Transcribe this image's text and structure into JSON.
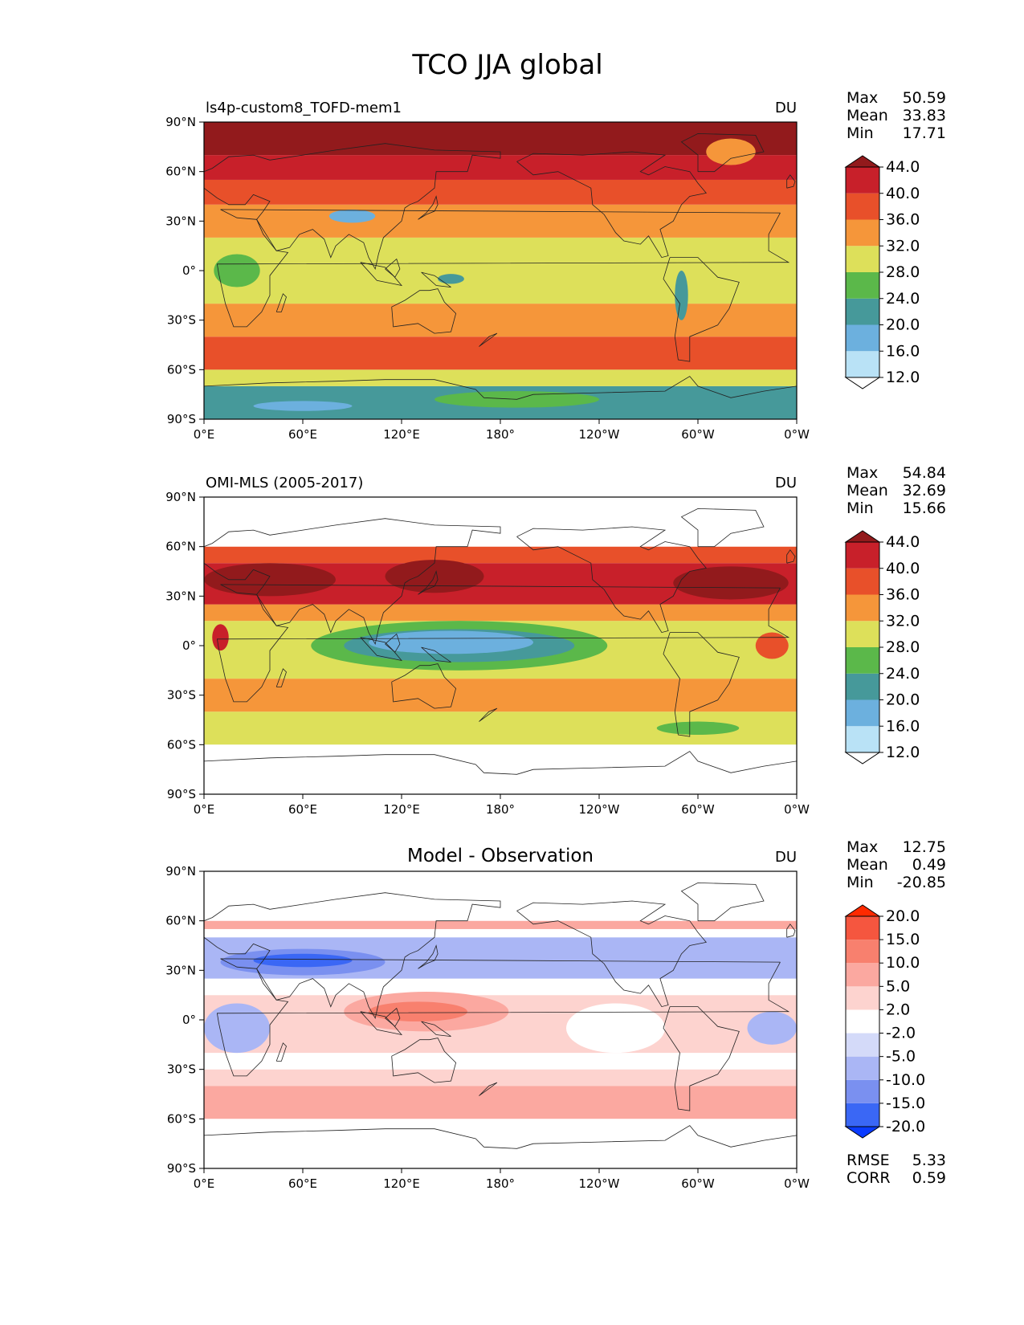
{
  "title": "TCO JJA global",
  "panels": [
    {
      "id": "model",
      "left_label": "ls4p-custom8_TOFD-mem1",
      "center_label": "",
      "unit": "DU",
      "stats": [
        {
          "label": "Max",
          "value": "50.59"
        },
        {
          "label": "Mean",
          "value": "33.83"
        },
        {
          "label": "Min",
          "value": "17.71"
        }
      ],
      "colorbar": {
        "colors": [
          "#ffffff",
          "#b9e2f6",
          "#6cb0de",
          "#46999a",
          "#5bb84a",
          "#dde05a",
          "#f5963a",
          "#e8502a",
          "#c8202a",
          "#921a1c"
        ],
        "labels": [
          "12.0",
          "16.0",
          "20.0",
          "24.0",
          "28.0",
          "32.0",
          "36.0",
          "40.0",
          "44.0"
        ],
        "extend_low_color": "#ffffff",
        "extend_high_color": "#921a1c"
      },
      "data_lat_range": [
        -90,
        90
      ],
      "zonal_bands": [
        {
          "lat0": -90,
          "lat1": -70,
          "color": "#46999a"
        },
        {
          "lat0": -70,
          "lat1": -60,
          "color": "#dde05a"
        },
        {
          "lat0": -60,
          "lat1": -40,
          "color": "#e8502a"
        },
        {
          "lat0": -40,
          "lat1": -20,
          "color": "#f5963a"
        },
        {
          "lat0": -20,
          "lat1": 20,
          "color": "#dde05a"
        },
        {
          "lat0": 20,
          "lat1": 40,
          "color": "#f5963a"
        },
        {
          "lat0": 40,
          "lat1": 55,
          "color": "#e8502a"
        },
        {
          "lat0": 55,
          "lat1": 70,
          "color": "#c8202a"
        },
        {
          "lat0": 70,
          "lat1": 90,
          "color": "#921a1c"
        }
      ],
      "blobs": [
        {
          "lon": 20,
          "lat": 0,
          "rx": 14,
          "ry": 10,
          "color": "#5bb84a"
        },
        {
          "lon": 90,
          "lat": 33,
          "rx": 14,
          "ry": 4,
          "color": "#6cb0de"
        },
        {
          "lon": 150,
          "lat": -5,
          "rx": 8,
          "ry": 3,
          "color": "#46999a"
        },
        {
          "lon": 290,
          "lat": -15,
          "rx": 4,
          "ry": 15,
          "color": "#46999a"
        },
        {
          "lon": 320,
          "lat": 72,
          "rx": 15,
          "ry": 8,
          "color": "#f5963a"
        },
        {
          "lon": 60,
          "lat": -82,
          "rx": 30,
          "ry": 3,
          "color": "#6cb0de"
        },
        {
          "lon": 190,
          "lat": -78,
          "rx": 50,
          "ry": 5,
          "color": "#5bb84a"
        }
      ]
    },
    {
      "id": "obs",
      "left_label": "OMI-MLS (2005-2017)",
      "center_label": "",
      "unit": "DU",
      "stats": [
        {
          "label": "Max",
          "value": "54.84"
        },
        {
          "label": "Mean",
          "value": "32.69"
        },
        {
          "label": "Min",
          "value": "15.66"
        }
      ],
      "colorbar": {
        "colors": [
          "#ffffff",
          "#b9e2f6",
          "#6cb0de",
          "#46999a",
          "#5bb84a",
          "#dde05a",
          "#f5963a",
          "#e8502a",
          "#c8202a",
          "#921a1c"
        ],
        "labels": [
          "12.0",
          "16.0",
          "20.0",
          "24.0",
          "28.0",
          "32.0",
          "36.0",
          "40.0",
          "44.0"
        ],
        "extend_low_color": "#ffffff",
        "extend_high_color": "#921a1c"
      },
      "data_lat_range": [
        -60,
        60
      ],
      "zonal_bands": [
        {
          "lat0": -60,
          "lat1": -40,
          "color": "#dde05a"
        },
        {
          "lat0": -40,
          "lat1": -20,
          "color": "#f5963a"
        },
        {
          "lat0": -20,
          "lat1": 15,
          "color": "#dde05a"
        },
        {
          "lat0": 15,
          "lat1": 25,
          "color": "#f5963a"
        },
        {
          "lat0": 25,
          "lat1": 50,
          "color": "#c8202a"
        },
        {
          "lat0": 50,
          "lat1": 60,
          "color": "#e8502a"
        }
      ],
      "blobs": [
        {
          "lon": 40,
          "lat": 40,
          "rx": 40,
          "ry": 10,
          "color": "#921a1c"
        },
        {
          "lon": 140,
          "lat": 42,
          "rx": 30,
          "ry": 10,
          "color": "#921a1c"
        },
        {
          "lon": 320,
          "lat": 38,
          "rx": 35,
          "ry": 10,
          "color": "#921a1c"
        },
        {
          "lon": 155,
          "lat": 0,
          "rx": 90,
          "ry": 15,
          "color": "#5bb84a"
        },
        {
          "lon": 155,
          "lat": 0,
          "rx": 70,
          "ry": 10,
          "color": "#46999a"
        },
        {
          "lon": 150,
          "lat": 2,
          "rx": 50,
          "ry": 7,
          "color": "#6cb0de"
        },
        {
          "lon": 300,
          "lat": -50,
          "rx": 25,
          "ry": 4,
          "color": "#5bb84a"
        },
        {
          "lon": 10,
          "lat": 5,
          "rx": 5,
          "ry": 8,
          "color": "#c8202a"
        },
        {
          "lon": 345,
          "lat": 0,
          "rx": 10,
          "ry": 8,
          "color": "#e8502a"
        }
      ]
    },
    {
      "id": "diff",
      "left_label": "",
      "center_label": "Model - Observation",
      "unit": "DU",
      "stats": [
        {
          "label": "Max",
          "value": "12.75"
        },
        {
          "label": "Mean",
          "value": "0.49"
        },
        {
          "label": "Min",
          "value": "-20.85"
        }
      ],
      "colorbar": {
        "colors": [
          "#0a3bff",
          "#3a67f5",
          "#7a90f0",
          "#aab6f5",
          "#d4daf9",
          "#ffffff",
          "#fdd3cf",
          "#fba8a0",
          "#f8806e",
          "#f5563f",
          "#f03a1e"
        ],
        "labels": [
          "-20.0",
          "-15.0",
          "-10.0",
          "-5.0",
          "-2.0",
          "2.0",
          "5.0",
          "10.0",
          "15.0",
          "20.0"
        ],
        "extend_low_color": "#0a3bff",
        "extend_high_color": "#ff2a00"
      },
      "data_lat_range": [
        -60,
        60
      ],
      "zonal_bands": [
        {
          "lat0": -60,
          "lat1": -40,
          "color": "#fba8a0"
        },
        {
          "lat0": -40,
          "lat1": -30,
          "color": "#fdd3cf"
        },
        {
          "lat0": -30,
          "lat1": -20,
          "color": "#ffffff"
        },
        {
          "lat0": -20,
          "lat1": 15,
          "color": "#fdd3cf"
        },
        {
          "lat0": 15,
          "lat1": 25,
          "color": "#ffffff"
        },
        {
          "lat0": 25,
          "lat1": 50,
          "color": "#aab6f5"
        },
        {
          "lat0": 50,
          "lat1": 55,
          "color": "#ffffff"
        },
        {
          "lat0": 55,
          "lat1": 60,
          "color": "#fba8a0"
        }
      ],
      "blobs": [
        {
          "lon": 60,
          "lat": 35,
          "rx": 50,
          "ry": 8,
          "color": "#7a90f0"
        },
        {
          "lon": 60,
          "lat": 36,
          "rx": 30,
          "ry": 4,
          "color": "#3a67f5"
        },
        {
          "lon": 300,
          "lat": 35,
          "rx": 40,
          "ry": 8,
          "color": "#aab6f5"
        },
        {
          "lon": 135,
          "lat": 5,
          "rx": 50,
          "ry": 12,
          "color": "#fba8a0"
        },
        {
          "lon": 130,
          "lat": 5,
          "rx": 30,
          "ry": 6,
          "color": "#f8806e"
        },
        {
          "lon": 20,
          "lat": -5,
          "rx": 20,
          "ry": 15,
          "color": "#aab6f5"
        },
        {
          "lon": 345,
          "lat": -5,
          "rx": 15,
          "ry": 10,
          "color": "#aab6f5"
        },
        {
          "lon": 250,
          "lat": -5,
          "rx": 30,
          "ry": 15,
          "color": "#ffffff"
        }
      ],
      "extra_stats": [
        {
          "label": "RMSE",
          "value": "5.33"
        },
        {
          "label": "CORR",
          "value": "0.59"
        }
      ]
    }
  ],
  "axes": {
    "xticks": [
      "0°E",
      "60°E",
      "120°E",
      "180°",
      "120°W",
      "60°W",
      "0°W"
    ],
    "yticks": [
      "90°N",
      "60°N",
      "30°N",
      "0°",
      "30°S",
      "60°S",
      "90°S"
    ]
  },
  "chart_data": [
    {
      "type": "heatmap",
      "title": "TCO JJA global",
      "subtitle": "ls4p-custom8_TOFD-mem1",
      "unit": "DU",
      "xlabel": "",
      "ylabel": "",
      "xlim": [
        0,
        360
      ],
      "ylim": [
        -90,
        90
      ],
      "color_levels": [
        12.0,
        16.0,
        20.0,
        24.0,
        28.0,
        32.0,
        36.0,
        40.0,
        44.0
      ],
      "max": 50.59,
      "mean": 33.83,
      "min": 17.71
    },
    {
      "type": "heatmap",
      "title": "OMI-MLS (2005-2017)",
      "unit": "DU",
      "xlim": [
        0,
        360
      ],
      "ylim": [
        -90,
        90
      ],
      "data_extent_lat": [
        -60,
        60
      ],
      "color_levels": [
        12.0,
        16.0,
        20.0,
        24.0,
        28.0,
        32.0,
        36.0,
        40.0,
        44.0
      ],
      "max": 54.84,
      "mean": 32.69,
      "min": 15.66
    },
    {
      "type": "heatmap",
      "title": "Model - Observation",
      "unit": "DU",
      "xlim": [
        0,
        360
      ],
      "ylim": [
        -90,
        90
      ],
      "data_extent_lat": [
        -60,
        60
      ],
      "color_levels": [
        -20.0,
        -15.0,
        -10.0,
        -5.0,
        -2.0,
        2.0,
        5.0,
        10.0,
        15.0,
        20.0
      ],
      "max": 12.75,
      "mean": 0.49,
      "min": -20.85,
      "rmse": 5.33,
      "corr": 0.59
    }
  ]
}
